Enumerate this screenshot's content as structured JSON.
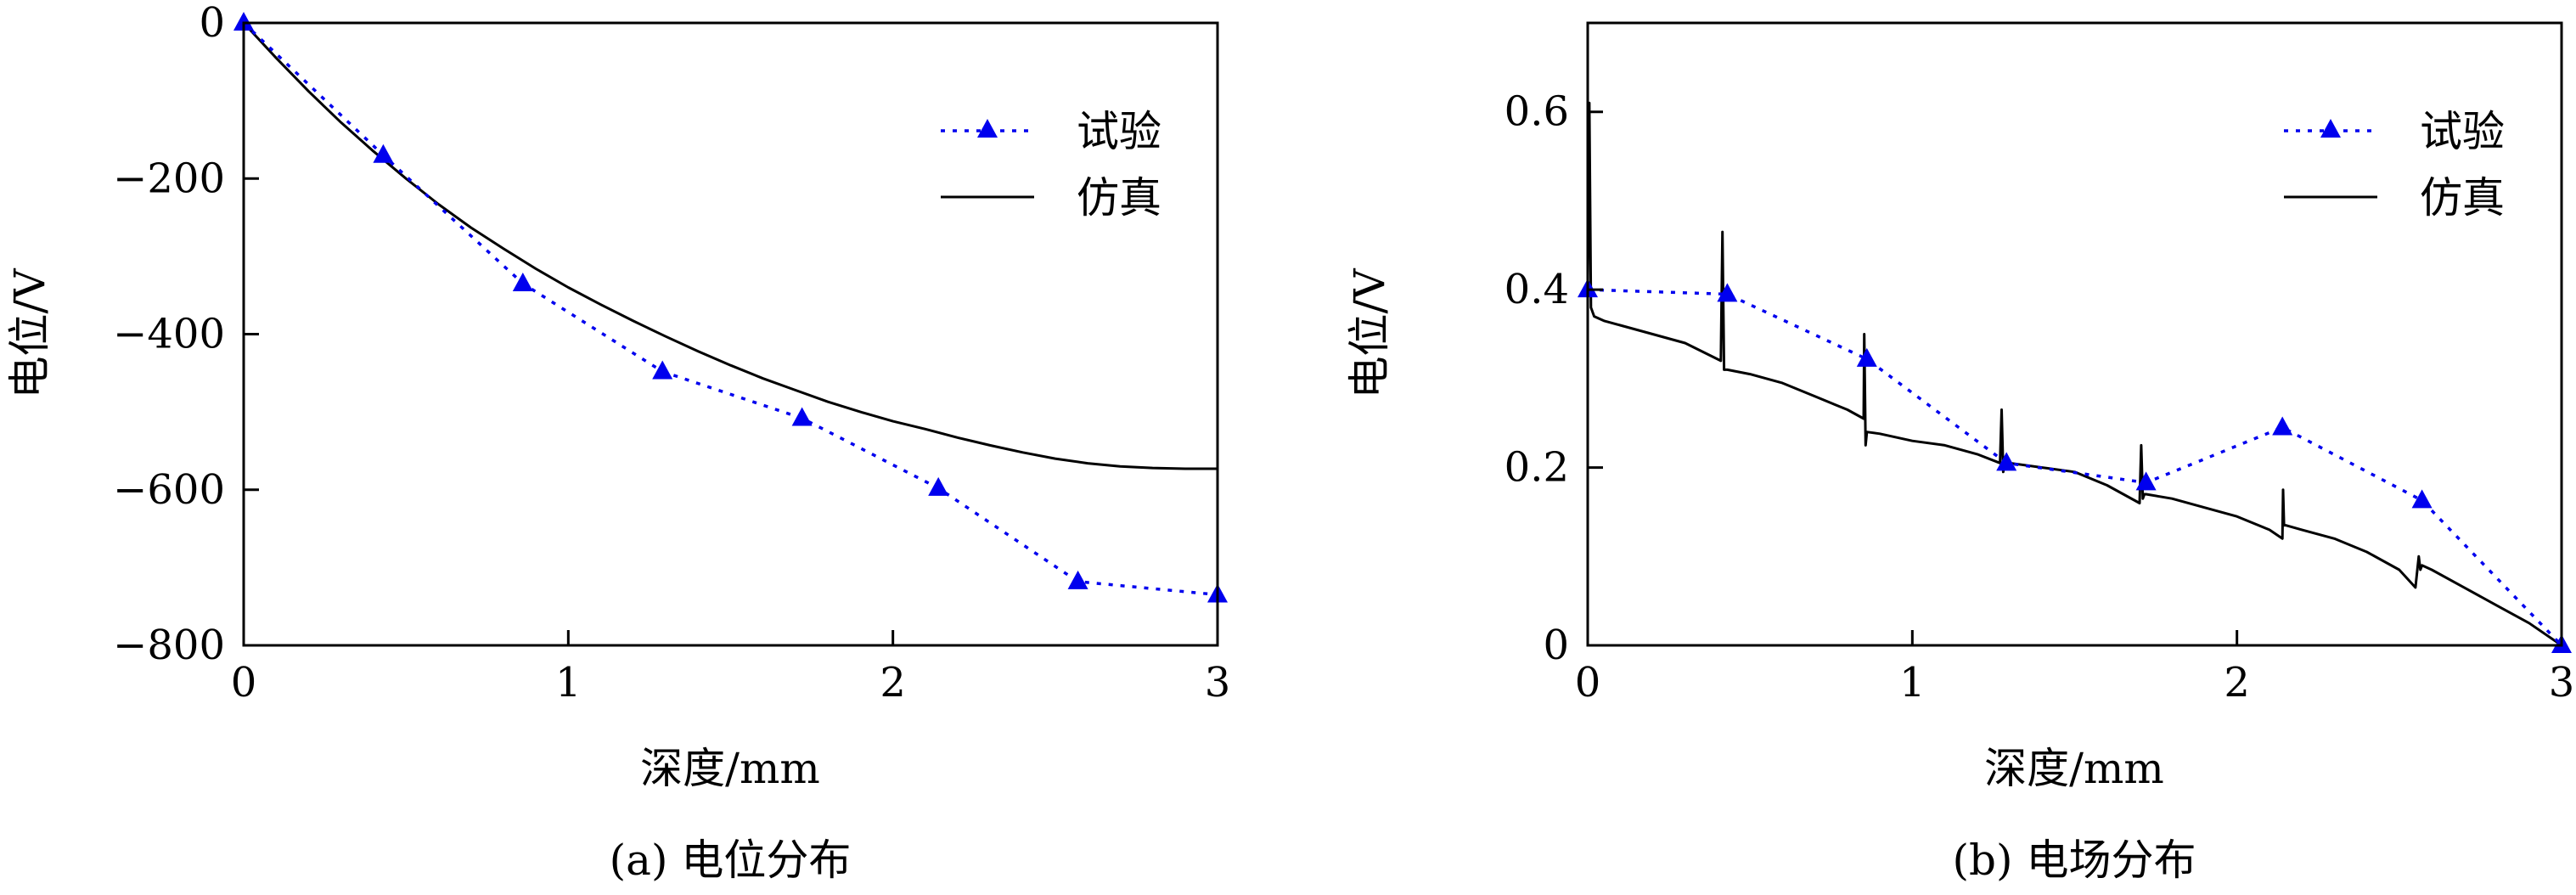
{
  "chart_data": [
    {
      "type": "line",
      "caption": "(a) 电位分布",
      "xlabel": "深度/mm",
      "ylabel": "电位/V",
      "xlim": [
        0,
        3
      ],
      "ylim": [
        -800,
        0
      ],
      "xticks": [
        0,
        1,
        2,
        3
      ],
      "xtick_labels": [
        "0",
        "1",
        "2",
        "3"
      ],
      "yticks": [
        0,
        -200,
        -400,
        -600,
        -800
      ],
      "ytick_labels": [
        "0",
        "−200",
        "−400",
        "−600",
        "−800"
      ],
      "legend_position": "top-right",
      "series": [
        {
          "name": "试验",
          "style": "dotted-triangle",
          "color": "#0000ee",
          "x": [
            0,
            0.43,
            0.86,
            1.29,
            1.72,
            2.14,
            2.57,
            3.0
          ],
          "y": [
            0,
            -170,
            -335,
            -448,
            -508,
            -598,
            -718,
            -735
          ]
        },
        {
          "name": "仿真",
          "style": "solid",
          "color": "#000000",
          "x": [
            0,
            0.1,
            0.2,
            0.3,
            0.4,
            0.5,
            0.6,
            0.7,
            0.8,
            0.9,
            1.0,
            1.1,
            1.2,
            1.3,
            1.4,
            1.5,
            1.6,
            1.7,
            1.8,
            1.9,
            2.0,
            2.1,
            2.2,
            2.3,
            2.4,
            2.5,
            2.6,
            2.7,
            2.8,
            2.9,
            3.0
          ],
          "y": [
            0,
            -45,
            -88,
            -128,
            -165,
            -200,
            -233,
            -263,
            -290,
            -316,
            -340,
            -362,
            -383,
            -403,
            -422,
            -440,
            -457,
            -472,
            -487,
            -500,
            -512,
            -522,
            -533,
            -543,
            -552,
            -560,
            -566,
            -570,
            -572,
            -573,
            -573
          ]
        }
      ]
    },
    {
      "type": "line",
      "caption": "(b) 电场分布",
      "xlabel": "深度/mm",
      "ylabel": "电位/V",
      "xlim": [
        0,
        3
      ],
      "ylim": [
        0,
        0.7
      ],
      "xticks": [
        0,
        1,
        2,
        3
      ],
      "xtick_labels": [
        "0",
        "1",
        "2",
        "3"
      ],
      "yticks": [
        0,
        0.2,
        0.4,
        0.6
      ],
      "ytick_labels": [
        "0",
        "0.2",
        "0.4",
        "0.6"
      ],
      "legend_position": "top-right",
      "series": [
        {
          "name": "试验",
          "style": "dotted-triangle",
          "color": "#0000ee",
          "x": [
            0,
            0.43,
            0.86,
            1.29,
            1.72,
            2.14,
            2.57,
            3.0
          ],
          "y": [
            0.4,
            0.395,
            0.322,
            0.205,
            0.183,
            0.245,
            0.163,
            0.0
          ]
        },
        {
          "name": "仿真",
          "style": "solid",
          "color": "#000000",
          "x": [
            0,
            0.005,
            0.01,
            0.02,
            0.05,
            0.1,
            0.2,
            0.3,
            0.41,
            0.415,
            0.42,
            0.425,
            0.43,
            0.5,
            0.6,
            0.7,
            0.8,
            0.85,
            0.852,
            0.856,
            0.86,
            0.9,
            1.0,
            1.1,
            1.2,
            1.27,
            1.275,
            1.28,
            1.285,
            1.3,
            1.4,
            1.5,
            1.6,
            1.7,
            1.705,
            1.71,
            1.715,
            1.72,
            1.8,
            1.9,
            2.0,
            2.1,
            2.14,
            2.142,
            2.145,
            2.15,
            2.2,
            2.3,
            2.4,
            2.5,
            2.55,
            2.56,
            2.565,
            2.57,
            2.6,
            2.7,
            2.8,
            2.9,
            3.0
          ],
          "y": [
            0.4,
            0.61,
            0.38,
            0.37,
            0.365,
            0.36,
            0.35,
            0.34,
            0.32,
            0.465,
            0.31,
            0.31,
            0.31,
            0.305,
            0.295,
            0.28,
            0.265,
            0.255,
            0.35,
            0.225,
            0.24,
            0.238,
            0.23,
            0.225,
            0.215,
            0.205,
            0.265,
            0.195,
            0.205,
            0.205,
            0.2,
            0.195,
            0.18,
            0.16,
            0.225,
            0.165,
            0.17,
            0.17,
            0.165,
            0.155,
            0.145,
            0.13,
            0.12,
            0.175,
            0.135,
            0.135,
            0.13,
            0.12,
            0.105,
            0.085,
            0.065,
            0.1,
            0.085,
            0.09,
            0.085,
            0.065,
            0.045,
            0.025,
            0.0
          ]
        }
      ]
    }
  ]
}
